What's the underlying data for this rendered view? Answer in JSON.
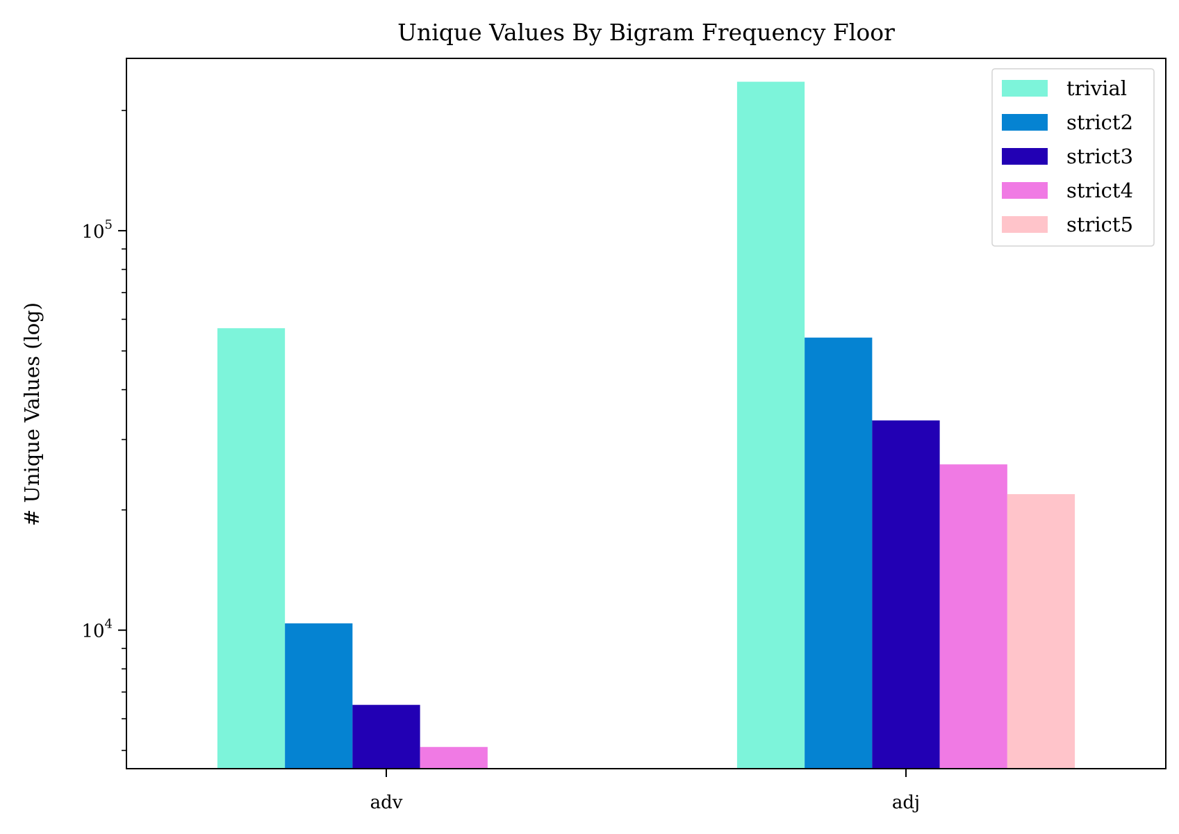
{
  "chart_data": {
    "type": "bar",
    "title": "Unique Values By Bigram Frequency Floor",
    "xlabel": "",
    "ylabel": "# Unique Values (log)",
    "yscale": "log",
    "ylim": [
      4500,
      270000
    ],
    "categories": [
      "adv",
      "adj"
    ],
    "series": [
      {
        "name": "trivial",
        "color": "#7df4da",
        "values": [
          57000,
          236000
        ]
      },
      {
        "name": "strict2",
        "color": "#0583d2",
        "values": [
          10400,
          54000
        ]
      },
      {
        "name": "strict3",
        "color": "#2200b4",
        "values": [
          6500,
          33500
        ]
      },
      {
        "name": "strict4",
        "color": "#f07ae4",
        "values": [
          5100,
          26000
        ]
      },
      {
        "name": "strict5",
        "color": "#ffc4ca",
        "values": [
          4350,
          21900
        ]
      }
    ],
    "y_major_ticks": [
      {
        "value": 10000,
        "base": "10",
        "exp": "4"
      },
      {
        "value": 100000,
        "base": "10",
        "exp": "5"
      }
    ],
    "y_minor_ticks": [
      5000,
      6000,
      7000,
      8000,
      9000,
      20000,
      30000,
      40000,
      50000,
      60000,
      70000,
      80000,
      90000,
      200000
    ],
    "grid": false,
    "legend_position": "top-right"
  }
}
